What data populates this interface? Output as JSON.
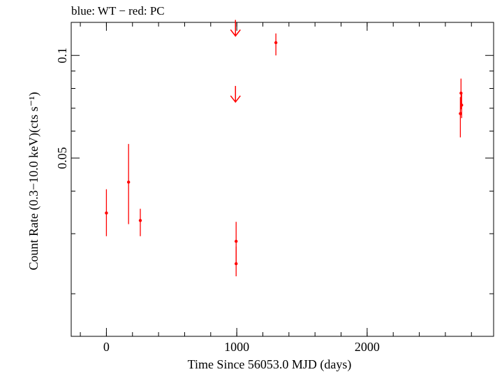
{
  "chart_data": {
    "type": "scatter",
    "title": "blue: WT − red: PC",
    "xlabel": "Time Since 56053.0 MJD (days)",
    "ylabel": "Count Rate (0.3−10.0 keV)(cts s⁻¹)",
    "xlim": [
      -270,
      2970
    ],
    "ylim": [
      0.015,
      0.125
    ],
    "y_scale": "log",
    "x_ticks": [
      {
        "value": 0,
        "label": "0"
      },
      {
        "value": 1000,
        "label": "1000"
      },
      {
        "value": 2000,
        "label": "2000"
      }
    ],
    "y_ticks": [
      {
        "value": 0.05,
        "label": "0.05"
      },
      {
        "value": 0.1,
        "label": "0.1"
      }
    ],
    "x_minor_step": 200,
    "y_minor": [
      0.02,
      0.03,
      0.04,
      0.06,
      0.07,
      0.08,
      0.09
    ],
    "grid": false,
    "series": [
      {
        "color": "#ff0000",
        "points": [
          {
            "x": 0,
            "y": 0.0345,
            "ylo": 0.0295,
            "yhi": 0.0405
          },
          {
            "x": 170,
            "y": 0.0425,
            "ylo": 0.032,
            "yhi": 0.055
          },
          {
            "x": 260,
            "y": 0.0328,
            "ylo": 0.0295,
            "yhi": 0.0355
          },
          {
            "x": 995,
            "y": 0.0285,
            "ylo": 0.0245,
            "yhi": 0.0325
          },
          {
            "x": 995,
            "y": 0.0245,
            "ylo": 0.0225,
            "yhi": 0.0275
          },
          {
            "x": 1300,
            "y": 0.109,
            "ylo": 0.1,
            "yhi": 0.116
          },
          {
            "x": 2715,
            "y": 0.0675,
            "ylo": 0.0575,
            "yhi": 0.0755
          },
          {
            "x": 2720,
            "y": 0.0775,
            "ylo": 0.0695,
            "yhi": 0.0855
          },
          {
            "x": 2725,
            "y": 0.0715,
            "ylo": 0.0655,
            "yhi": 0.078
          }
        ],
        "upper_limits": [
          {
            "x": 990,
            "y": 0.114
          },
          {
            "x": 990,
            "y": 0.073
          }
        ]
      }
    ]
  }
}
